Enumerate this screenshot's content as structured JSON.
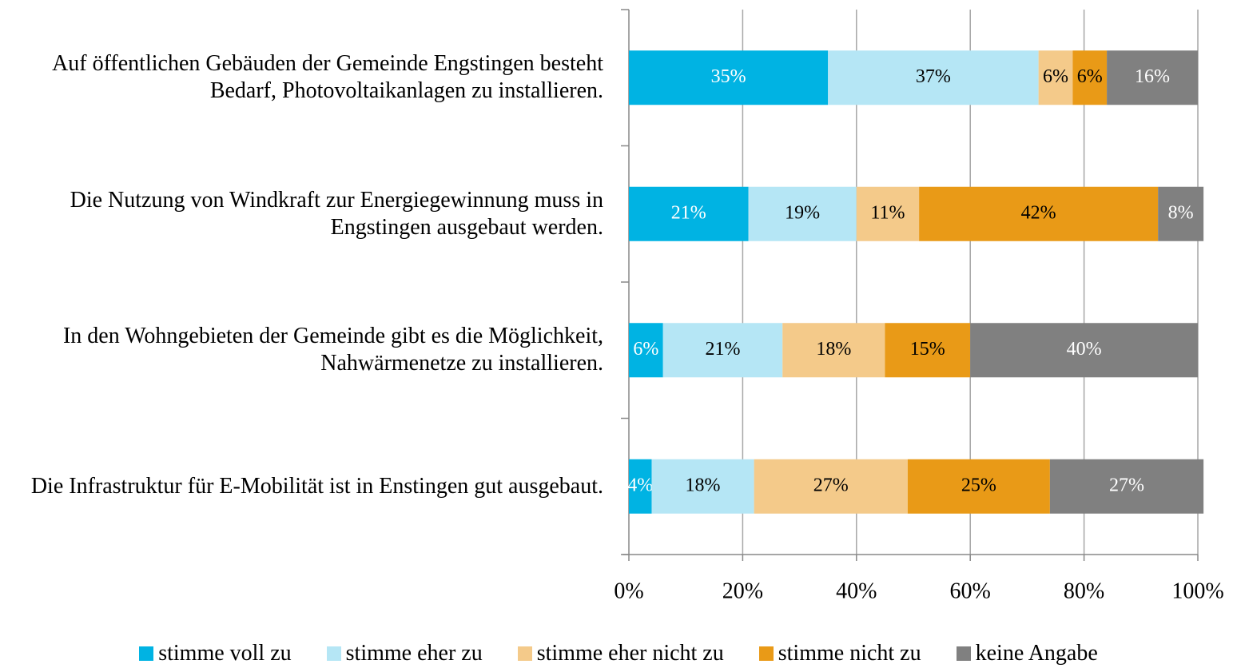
{
  "chart_data": {
    "type": "bar",
    "orientation": "horizontal",
    "stacked": true,
    "categories": [
      "Auf öffentlichen Gebäuden der Gemeinde Engstingen besteht Bedarf, Photovoltaikanlagen zu installieren.",
      "Die Nutzung von Windkraft zur Energiegewinnung muss in Engstingen ausgebaut werden.",
      "In den Wohngebieten der Gemeinde gibt es die Möglichkeit, Nahwärmenetze zu installieren.",
      "Die Infrastruktur für E-Mobilität ist in Enstingen gut ausgebaut."
    ],
    "series": [
      {
        "name": "stimme voll zu",
        "color": "#00b3e3",
        "label_color": "#ffffff",
        "values": [
          35,
          21,
          6,
          4
        ],
        "value_labels": [
          "35%",
          "21%",
          "6%",
          "4%"
        ]
      },
      {
        "name": "stimme eher zu",
        "color": "#b5e6f5",
        "label_color": "#000000",
        "values": [
          37,
          19,
          21,
          18
        ],
        "value_labels": [
          "37%",
          "19%",
          "21%",
          "18%"
        ]
      },
      {
        "name": "stimme eher nicht zu",
        "color": "#f4ca8a",
        "label_color": "#000000",
        "values": [
          6,
          11,
          18,
          27
        ],
        "value_labels": [
          "6%",
          "11%",
          "18%",
          "27%"
        ]
      },
      {
        "name": "stimme nicht zu",
        "color": "#e99a17",
        "label_color": "#000000",
        "values": [
          6,
          42,
          15,
          25
        ],
        "value_labels": [
          "6%",
          "42%",
          "15%",
          "25%"
        ]
      },
      {
        "name": "keine Angabe",
        "color": "#808080",
        "label_color": "#ffffff",
        "values": [
          16,
          8,
          40,
          27
        ],
        "value_labels": [
          "16%",
          "8%",
          "40%",
          "27%"
        ]
      }
    ],
    "xlim": [
      0,
      100
    ],
    "xticks": [
      {
        "value": 0,
        "label": "0%"
      },
      {
        "value": 20,
        "label": "20%"
      },
      {
        "value": 40,
        "label": "40%"
      },
      {
        "value": 60,
        "label": "60%"
      },
      {
        "value": 80,
        "label": "80%"
      },
      {
        "value": 100,
        "label": "100%"
      }
    ],
    "grid": true,
    "legend": "bottom"
  }
}
